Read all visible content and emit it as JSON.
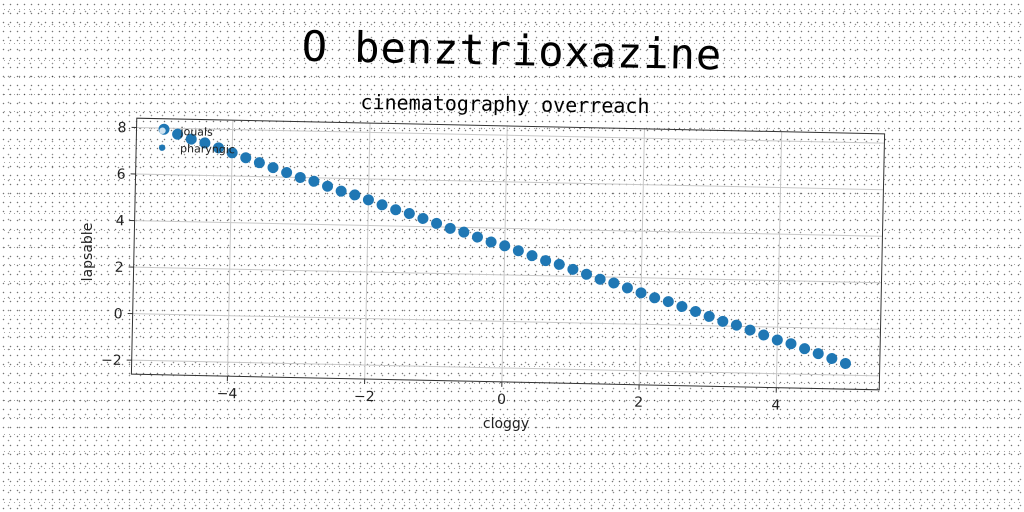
{
  "chart_data": {
    "type": "scatter",
    "title": "O benztrioxazine",
    "subtitle": "cinematography overreach",
    "xlabel": "cloggy",
    "ylabel": "lapsable",
    "xlim": [
      -5.4,
      5.5
    ],
    "ylim": [
      -2.6,
      8.4
    ],
    "xticks": [
      -4,
      -2,
      0,
      2,
      4
    ],
    "yticks": [
      -2,
      0,
      2,
      4,
      6,
      8
    ],
    "xtick_labels": [
      "−4",
      "−2",
      "0",
      "2",
      "4"
    ],
    "ytick_labels": [
      "−2",
      "0",
      "2",
      "4",
      "6",
      "8"
    ],
    "grid": true,
    "legend_position": "top-left",
    "series": [
      {
        "name": "jouals",
        "color": "#cfe3f1",
        "x": [],
        "y": []
      },
      {
        "name": "pharyngic",
        "color": "#1f77b4",
        "x": [
          -5.0,
          -4.8,
          -4.6,
          -4.4,
          -4.2,
          -4.0,
          -3.8,
          -3.6,
          -3.4,
          -3.2,
          -3.0,
          -2.8,
          -2.6,
          -2.4,
          -2.2,
          -2.0,
          -1.8,
          -1.6,
          -1.4,
          -1.2,
          -1.0,
          -0.8,
          -0.6,
          -0.4,
          -0.2,
          0.0,
          0.2,
          0.4,
          0.6,
          0.8,
          1.0,
          1.2,
          1.4,
          1.6,
          1.8,
          2.0,
          2.2,
          2.4,
          2.6,
          2.8,
          3.0,
          3.2,
          3.4,
          3.6,
          3.8,
          4.0,
          4.2,
          4.4,
          4.6,
          4.8,
          5.0
        ],
        "y": [
          7.95,
          7.75,
          7.55,
          7.4,
          7.2,
          7.0,
          6.8,
          6.6,
          6.4,
          6.2,
          6.0,
          5.85,
          5.65,
          5.45,
          5.3,
          5.1,
          4.9,
          4.7,
          4.55,
          4.35,
          4.15,
          3.95,
          3.8,
          3.6,
          3.4,
          3.25,
          3.05,
          2.85,
          2.65,
          2.5,
          2.3,
          2.1,
          1.9,
          1.75,
          1.55,
          1.35,
          1.15,
          1.0,
          0.8,
          0.6,
          0.4,
          0.2,
          0.05,
          -0.15,
          -0.35,
          -0.55,
          -0.7,
          -0.9,
          -1.1,
          -1.3,
          -1.5
        ]
      }
    ]
  }
}
